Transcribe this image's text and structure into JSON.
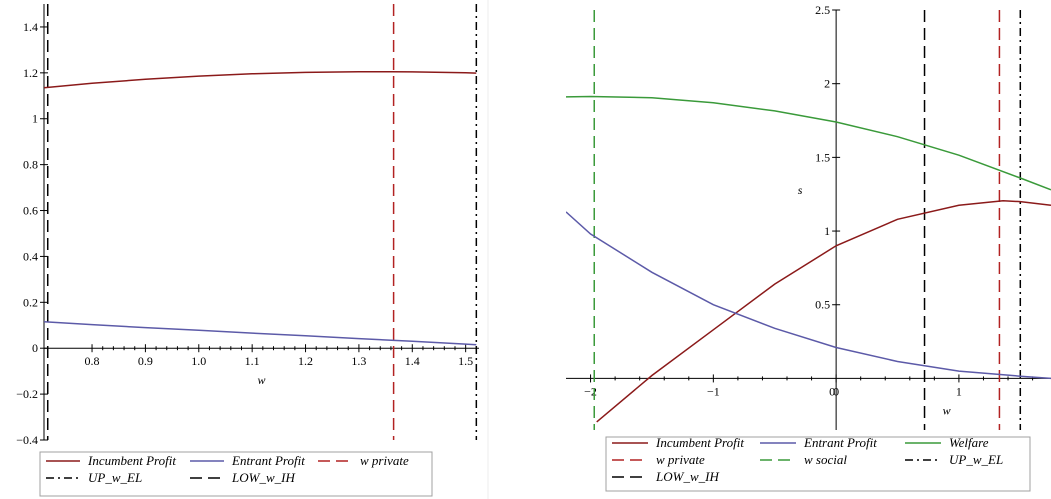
{
  "chart_data": [
    {
      "type": "line",
      "xlabel": "w",
      "ylabel": "",
      "xlim": [
        0.71,
        1.525
      ],
      "ylim": [
        -0.4,
        1.5
      ],
      "xticks": [
        "0.8",
        "0.9",
        "1.0",
        "1.1",
        "1.2",
        "1.3",
        "1.4",
        "1.5"
      ],
      "yticks": [
        "-0.4",
        "-0.2",
        "0",
        "0.2",
        "0.4",
        "0.6",
        "0.8",
        "1",
        "1.2",
        "1.4"
      ],
      "grid": false,
      "legend_position": "bottom",
      "series": [
        {
          "name": "Incumbent Profit",
          "color": "#8b1a1a",
          "style": "solid",
          "x": [
            0.71,
            0.8,
            0.9,
            1.0,
            1.1,
            1.2,
            1.3,
            1.36,
            1.4,
            1.5,
            1.52
          ],
          "y": [
            1.135,
            1.155,
            1.172,
            1.186,
            1.196,
            1.202,
            1.205,
            1.205,
            1.204,
            1.2,
            1.199
          ]
        },
        {
          "name": "Entrant Profit",
          "color": "#5c5aa8",
          "style": "solid",
          "x": [
            0.71,
            0.8,
            0.9,
            1.0,
            1.1,
            1.2,
            1.3,
            1.4,
            1.5,
            1.52
          ],
          "y": [
            0.115,
            0.103,
            0.09,
            0.078,
            0.066,
            0.054,
            0.042,
            0.03,
            0.018,
            0.015
          ]
        }
      ],
      "vlines": [
        {
          "name": "w private",
          "color": "#b22222",
          "style": "dashed",
          "x": 1.365
        },
        {
          "name": "UP_w_EL",
          "color": "#000000",
          "style": "dashdot",
          "x": 1.52
        },
        {
          "name": "LOW_w_IH",
          "color": "#000000",
          "style": "dashed",
          "x": 0.717
        }
      ],
      "legend": [
        [
          "Incumbent Profit",
          "Entrant Profit",
          "w private"
        ],
        [
          "UP_w_EL",
          "LOW_w_IH"
        ]
      ]
    },
    {
      "type": "line",
      "xlabel": "w",
      "ylabel": "s",
      "xlim": [
        -2.2,
        1.75
      ],
      "ylim": [
        -0.35,
        2.5
      ],
      "xticks": [
        "-2",
        "-1",
        "0",
        "1"
      ],
      "yticks": [
        "0.5",
        "1",
        "1.5",
        "2",
        "2.5"
      ],
      "grid": false,
      "legend_position": "bottom",
      "series": [
        {
          "name": "Incumbent Profit",
          "color": "#8b1a1a",
          "style": "solid",
          "x": [
            -1.95,
            -1.5,
            -1.0,
            -0.5,
            0.0,
            0.5,
            1.0,
            1.36,
            1.5,
            1.75
          ],
          "y": [
            -0.295,
            0.02,
            0.33,
            0.64,
            0.9,
            1.08,
            1.175,
            1.205,
            1.2,
            1.175
          ]
        },
        {
          "name": "Entrant Profit",
          "color": "#5c5aa8",
          "style": "solid",
          "x": [
            -2.2,
            -2.0,
            -1.5,
            -1.0,
            -0.5,
            0.0,
            0.5,
            1.0,
            1.5,
            1.75
          ],
          "y": [
            1.13,
            0.98,
            0.72,
            0.5,
            0.34,
            0.21,
            0.115,
            0.05,
            0.015,
            0.0
          ]
        },
        {
          "name": "Welfare",
          "color": "#3a9a3a",
          "style": "solid",
          "x": [
            -2.2,
            -2.0,
            -1.5,
            -1.0,
            -0.5,
            0.0,
            0.5,
            1.0,
            1.5,
            1.75
          ],
          "y": [
            1.91,
            1.913,
            1.905,
            1.87,
            1.815,
            1.74,
            1.64,
            1.515,
            1.36,
            1.28
          ]
        }
      ],
      "vlines": [
        {
          "name": "w private",
          "color": "#b22222",
          "style": "dashed",
          "x": 1.33
        },
        {
          "name": "w social",
          "color": "#3a9a3a",
          "style": "dashed",
          "x": -1.97
        },
        {
          "name": "UP_w_EL",
          "color": "#000000",
          "style": "dashdot",
          "x": 1.5
        },
        {
          "name": "LOW_w_IH",
          "color": "#000000",
          "style": "dashed",
          "x": 0.72
        }
      ],
      "legend": [
        [
          "Incumbent Profit",
          "Entrant Profit",
          "Welfare"
        ],
        [
          "w private",
          "w social",
          "UP_w_EL"
        ],
        [
          "LOW_w_IH"
        ]
      ]
    }
  ]
}
